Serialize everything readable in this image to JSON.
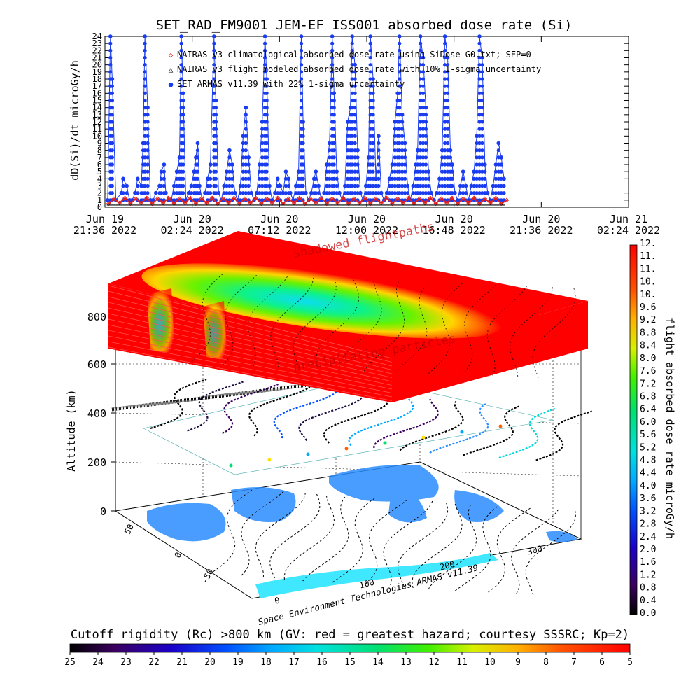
{
  "chart_data": [
    {
      "type": "line",
      "title": "SET_RAD_FM9001  JEM-EF ISS001 absorbed dose rate (Si)",
      "ylabel": "dD(Si)/dt microGy/h",
      "ylim": [
        0,
        24
      ],
      "y_ticks": [
        "0",
        "1",
        "2",
        "3",
        "4",
        "5",
        "6",
        "7",
        "8",
        "9",
        "10",
        "11",
        "12",
        "13",
        "14",
        "15",
        "16",
        "17",
        "18",
        "19",
        "20",
        "21",
        "22",
        "23",
        "24"
      ],
      "x_ticks": [
        {
          "date": "Jun 19",
          "time": "21:36 2022"
        },
        {
          "date": "Jun 20",
          "time": "02:24 2022"
        },
        {
          "date": "Jun 20",
          "time": "07:12 2022"
        },
        {
          "date": "Jun 20",
          "time": "12:00 2022"
        },
        {
          "date": "Jun 20",
          "time": "16:48 2022"
        },
        {
          "date": "Jun 20",
          "time": "21:36 2022"
        },
        {
          "date": "Jun 21",
          "time": "02:24 2022"
        }
      ],
      "legend": [
        {
          "symbol": "◇",
          "color": "#e0201c",
          "label": "NAIRAS v3 climatological absorbed dose rate using SiDose_G0.txt; SEP=0"
        },
        {
          "symbol": "△",
          "color": "#000000",
          "label": "NAIRAS v3 flight modeled absorbed dose rate with 10% 1-sigma uncertainty"
        },
        {
          "symbol": "●",
          "color": "#1a3cf0",
          "label": "SET ARMAS v11.39 with 22% 1-sigma uncertainty"
        }
      ],
      "series": [
        {
          "name": "SET ARMAS v11.39 with 22% 1-sigma uncertainty",
          "color": "#1a3cf0",
          "points": [
            [
              0.15,
              1
            ],
            [
              0.3,
              24
            ],
            [
              0.4,
              18
            ],
            [
              0.6,
              1
            ],
            [
              0.9,
              2
            ],
            [
              1.0,
              4
            ],
            [
              1.2,
              3
            ],
            [
              1.35,
              1
            ],
            [
              1.5,
              1
            ],
            [
              1.65,
              2
            ],
            [
              1.8,
              4
            ],
            [
              2.0,
              3
            ],
            [
              2.1,
              9
            ],
            [
              2.2,
              24
            ],
            [
              2.35,
              14
            ],
            [
              2.5,
              1
            ],
            [
              2.65,
              1
            ],
            [
              2.8,
              2
            ],
            [
              3.0,
              3
            ],
            [
              3.1,
              5
            ],
            [
              3.25,
              6
            ],
            [
              3.35,
              2
            ],
            [
              3.5,
              1
            ],
            [
              3.65,
              1
            ],
            [
              3.8,
              3
            ],
            [
              3.95,
              5
            ],
            [
              4.1,
              7
            ],
            [
              4.2,
              24
            ],
            [
              4.3,
              16
            ],
            [
              4.45,
              1
            ],
            [
              4.6,
              2
            ],
            [
              4.75,
              3
            ],
            [
              4.9,
              5
            ],
            [
              5.0,
              7
            ],
            [
              5.1,
              9
            ],
            [
              5.2,
              3
            ],
            [
              5.35,
              1
            ],
            [
              5.5,
              2
            ],
            [
              5.65,
              4
            ],
            [
              5.8,
              6
            ],
            [
              6.0,
              24
            ],
            [
              6.1,
              15
            ],
            [
              6.25,
              2
            ],
            [
              6.4,
              1
            ],
            [
              6.55,
              3
            ],
            [
              6.7,
              5
            ],
            [
              6.85,
              8
            ],
            [
              7.0,
              6
            ],
            [
              7.15,
              2
            ],
            [
              7.3,
              1
            ],
            [
              7.45,
              3
            ],
            [
              7.6,
              10
            ],
            [
              7.75,
              14
            ],
            [
              7.9,
              7
            ],
            [
              8.05,
              2
            ],
            [
              8.2,
              1
            ],
            [
              8.35,
              2
            ],
            [
              8.5,
              6
            ],
            [
              8.65,
              12
            ],
            [
              8.8,
              24
            ],
            [
              8.9,
              18
            ],
            [
              9.05,
              3
            ],
            [
              9.2,
              1
            ],
            [
              9.35,
              2
            ],
            [
              9.5,
              4
            ],
            [
              9.65,
              3
            ],
            [
              9.8,
              2
            ],
            [
              9.95,
              5
            ],
            [
              10.1,
              4
            ],
            [
              10.2,
              2
            ],
            [
              10.35,
              1
            ],
            [
              10.5,
              3
            ],
            [
              10.65,
              5
            ],
            [
              10.8,
              24
            ],
            [
              10.9,
              12
            ],
            [
              11.05,
              2
            ],
            [
              11.2,
              1
            ],
            [
              11.35,
              2
            ],
            [
              11.5,
              4
            ],
            [
              11.6,
              5
            ],
            [
              11.75,
              3
            ],
            [
              11.9,
              1
            ],
            [
              12.05,
              2
            ],
            [
              12.2,
              6
            ],
            [
              12.35,
              9
            ],
            [
              12.5,
              24
            ],
            [
              12.6,
              16
            ],
            [
              12.75,
              5
            ],
            [
              12.9,
              2
            ],
            [
              13.05,
              1
            ],
            [
              13.2,
              3
            ],
            [
              13.35,
              12
            ],
            [
              13.5,
              14
            ],
            [
              13.6,
              24
            ],
            [
              13.75,
              20
            ],
            [
              13.9,
              8
            ],
            [
              14.05,
              2
            ],
            [
              14.2,
              1
            ],
            [
              14.35,
              3
            ],
            [
              14.5,
              7
            ],
            [
              14.6,
              24
            ],
            [
              14.75,
              18
            ],
            [
              14.9,
              4
            ],
            [
              15.05,
              10
            ],
            [
              15.2,
              2
            ],
            [
              15.35,
              1
            ],
            [
              15.5,
              2
            ],
            [
              15.65,
              4
            ],
            [
              15.8,
              6
            ],
            [
              15.95,
              12
            ],
            [
              16.1,
              16
            ],
            [
              16.2,
              24
            ],
            [
              16.35,
              13
            ],
            [
              16.5,
              9
            ],
            [
              16.65,
              3
            ],
            [
              16.8,
              1
            ],
            [
              16.95,
              3
            ],
            [
              17.1,
              6
            ],
            [
              17.2,
              8
            ],
            [
              17.35,
              24
            ],
            [
              17.5,
              21
            ],
            [
              17.65,
              14
            ],
            [
              17.8,
              5
            ],
            [
              17.95,
              2
            ],
            [
              18.1,
              1
            ],
            [
              18.25,
              2
            ],
            [
              18.4,
              4
            ],
            [
              18.55,
              8
            ],
            [
              18.7,
              24
            ],
            [
              18.85,
              21
            ],
            [
              19.0,
              8
            ],
            [
              19.1,
              6
            ],
            [
              19.25,
              2
            ],
            [
              19.4,
              1
            ],
            [
              19.55,
              3
            ],
            [
              19.7,
              5
            ],
            [
              19.85,
              3
            ],
            [
              20.0,
              1
            ],
            [
              20.15,
              3
            ],
            [
              20.3,
              5
            ],
            [
              20.45,
              10
            ],
            [
              20.6,
              24
            ],
            [
              20.75,
              21
            ],
            [
              20.9,
              6
            ],
            [
              21.05,
              2
            ],
            [
              21.2,
              1
            ],
            [
              21.35,
              3
            ],
            [
              21.5,
              6
            ],
            [
              21.65,
              9
            ],
            [
              21.8,
              7
            ],
            [
              21.95,
              4
            ]
          ]
        },
        {
          "name": "NAIRAS v3 climatological absorbed dose rate using SiDose_G0.txt; SEP=0",
          "color": "#e0201c",
          "points": [
            [
              0.2,
              0.5
            ],
            [
              0.5,
              1.2
            ],
            [
              0.8,
              0.6
            ],
            [
              1.1,
              1.3
            ],
            [
              1.4,
              0.5
            ],
            [
              1.7,
              1.2
            ],
            [
              2.0,
              0.6
            ],
            [
              2.3,
              1.3
            ],
            [
              2.6,
              0.5
            ],
            [
              2.9,
              1.2
            ],
            [
              3.2,
              0.6
            ],
            [
              3.5,
              1.3
            ],
            [
              3.8,
              0.5
            ],
            [
              4.1,
              1.2
            ],
            [
              4.4,
              0.6
            ],
            [
              4.7,
              1.3
            ],
            [
              5.0,
              0.5
            ],
            [
              5.3,
              1.2
            ],
            [
              5.6,
              0.6
            ],
            [
              5.9,
              1.3
            ],
            [
              6.2,
              0.5
            ],
            [
              6.5,
              1.2
            ],
            [
              6.8,
              0.6
            ],
            [
              7.1,
              1.3
            ],
            [
              7.4,
              0.5
            ],
            [
              7.7,
              1.2
            ],
            [
              8.0,
              0.6
            ],
            [
              8.3,
              1.3
            ],
            [
              8.6,
              0.5
            ],
            [
              8.9,
              1.2
            ],
            [
              9.2,
              0.6
            ],
            [
              9.5,
              1.3
            ],
            [
              9.8,
              0.5
            ],
            [
              10.1,
              1.2
            ],
            [
              10.4,
              0.6
            ],
            [
              10.7,
              1.3
            ],
            [
              11.0,
              0.5
            ],
            [
              11.3,
              1.2
            ],
            [
              11.6,
              0.6
            ],
            [
              11.9,
              1.3
            ],
            [
              12.2,
              0.5
            ],
            [
              12.5,
              1.2
            ],
            [
              12.8,
              0.6
            ],
            [
              13.1,
              1.3
            ],
            [
              13.4,
              0.5
            ],
            [
              13.7,
              1.2
            ],
            [
              14.0,
              0.6
            ],
            [
              14.3,
              1.3
            ],
            [
              14.6,
              0.5
            ],
            [
              14.9,
              1.2
            ],
            [
              15.2,
              0.6
            ],
            [
              15.5,
              1.3
            ],
            [
              15.8,
              0.5
            ],
            [
              16.1,
              1.2
            ],
            [
              16.4,
              0.6
            ],
            [
              16.7,
              1.3
            ],
            [
              17.0,
              0.5
            ],
            [
              17.3,
              1.2
            ],
            [
              17.6,
              0.6
            ],
            [
              17.9,
              1.3
            ],
            [
              18.2,
              0.5
            ],
            [
              18.5,
              1.2
            ],
            [
              18.8,
              0.6
            ],
            [
              19.1,
              1.3
            ],
            [
              19.4,
              0.5
            ],
            [
              19.7,
              1.2
            ],
            [
              20.0,
              0.6
            ],
            [
              20.3,
              1.3
            ],
            [
              20.6,
              0.5
            ],
            [
              20.9,
              1.2
            ],
            [
              21.2,
              0.6
            ],
            [
              21.5,
              1.3
            ],
            [
              21.8,
              0.5
            ],
            [
              22.1,
              1.0
            ]
          ]
        },
        {
          "name": "NAIRAS v3 flight modeled absorbed dose rate with 10% 1-sigma uncertainty",
          "color": "#000000",
          "points": [
            [
              0.1,
              0.3
            ],
            [
              22.0,
              0.3
            ]
          ]
        }
      ]
    },
    {
      "type": "heatmap",
      "ylabel": "Altitude (km)",
      "y_ticks": [
        "0",
        "200",
        "400",
        "600",
        "800"
      ],
      "x_ticks": [
        "0",
        "100",
        "200",
        "300"
      ],
      "lat_ticks": [
        "-50",
        "0",
        "50"
      ],
      "annotations": [
        "shadowed flightpaths",
        "precipitating particles",
        "Space Environment Technologies ARMAS v11.39"
      ],
      "colorbar_label": "flight absorbed dose rate microGy/h",
      "colorbar_ticks": [
        "0.0",
        "0.4",
        "0.8",
        "1.2",
        "1.6",
        "2.0",
        "2.4",
        "2.8",
        "3.2",
        "3.6",
        "4.0",
        "4.4",
        "4.8",
        "5.2",
        "5.6",
        "6.0",
        "6.4",
        "6.8",
        "7.2",
        "7.6",
        "8.0",
        "8.4",
        "8.8",
        "9.2",
        "9.6",
        "10.",
        "10.",
        "11.",
        "11.",
        "12."
      ]
    },
    {
      "type": "heatmap",
      "title": "Cutoff rigidity (Rc) >800 km (GV: red = greatest hazard; courtesy SSSRC; Kp=2)",
      "colorbar_ticks": [
        "25",
        "24",
        "23",
        "22",
        "21",
        "20",
        "19",
        "18",
        "17",
        "16",
        "15",
        "14",
        "13",
        "12",
        "11",
        "10",
        "9",
        "8",
        "7",
        "6",
        "5"
      ]
    }
  ]
}
